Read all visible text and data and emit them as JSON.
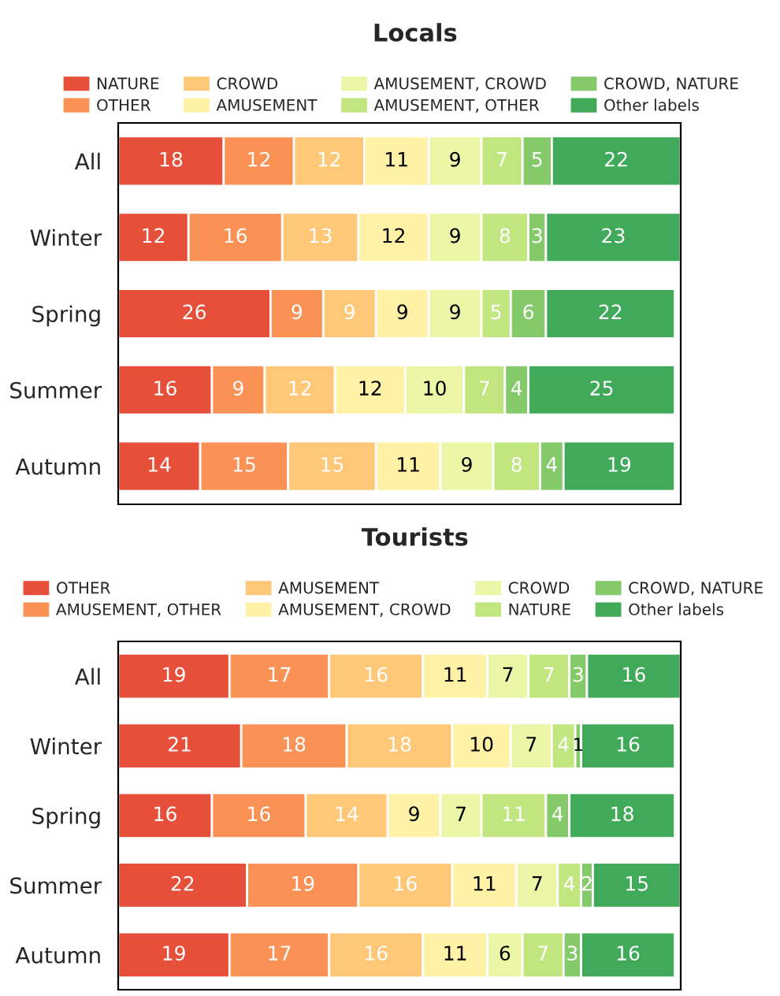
{
  "chart_data": [
    {
      "type": "bar",
      "orientation": "horizontal",
      "stacked": true,
      "title": "Locals",
      "categories": [
        "All",
        "Winter",
        "Spring",
        "Summer",
        "Autumn"
      ],
      "data_labels": true,
      "legend": "top",
      "tick_labels": "y",
      "grid": false,
      "series": [
        {
          "name": "NATURE",
          "color": "#e6503a",
          "values": [
            18,
            12,
            26,
            16,
            14
          ]
        },
        {
          "name": "OTHER",
          "color": "#fa9155",
          "values": [
            12,
            16,
            9,
            9,
            15
          ]
        },
        {
          "name": "CROWD",
          "color": "#fec878",
          "values": [
            12,
            13,
            9,
            12,
            15
          ]
        },
        {
          "name": "AMUSEMENT",
          "color": "#fff1a6",
          "values": [
            11,
            12,
            9,
            12,
            11
          ]
        },
        {
          "name": "AMUSEMENT, CROWD",
          "color": "#ebf6a6",
          "values": [
            9,
            9,
            9,
            10,
            9
          ]
        },
        {
          "name": "AMUSEMENT, OTHER",
          "color": "#c2e67f",
          "values": [
            7,
            8,
            5,
            7,
            8
          ]
        },
        {
          "name": "CROWD, NATURE",
          "color": "#84c96a",
          "values": [
            5,
            3,
            6,
            4,
            4
          ]
        },
        {
          "name": "Other labels",
          "color": "#40aa5a",
          "values": [
            22,
            23,
            22,
            25,
            19
          ]
        }
      ]
    },
    {
      "type": "bar",
      "orientation": "horizontal",
      "stacked": true,
      "title": "Tourists",
      "categories": [
        "All",
        "Winter",
        "Spring",
        "Summer",
        "Autumn"
      ],
      "data_labels": true,
      "legend": "top",
      "tick_labels": "y",
      "grid": false,
      "series": [
        {
          "name": "OTHER",
          "color": "#e6503a",
          "values": [
            19,
            21,
            16,
            22,
            19
          ]
        },
        {
          "name": "AMUSEMENT, OTHER",
          "color": "#fa9155",
          "values": [
            17,
            18,
            16,
            19,
            17
          ]
        },
        {
          "name": "AMUSEMENT",
          "color": "#fec878",
          "values": [
            16,
            18,
            14,
            16,
            16
          ]
        },
        {
          "name": "AMUSEMENT, CROWD",
          "color": "#fff1a6",
          "values": [
            11,
            10,
            9,
            11,
            11
          ]
        },
        {
          "name": "CROWD",
          "color": "#ebf6a6",
          "values": [
            7,
            7,
            7,
            7,
            6
          ]
        },
        {
          "name": "NATURE",
          "color": "#c2e67f",
          "values": [
            7,
            4,
            11,
            4,
            7
          ]
        },
        {
          "name": "CROWD, NATURE",
          "color": "#84c96a",
          "values": [
            3,
            1,
            4,
            2,
            3
          ]
        },
        {
          "name": "Other labels",
          "color": "#40aa5a",
          "values": [
            16,
            16,
            18,
            15,
            16
          ]
        }
      ]
    }
  ]
}
